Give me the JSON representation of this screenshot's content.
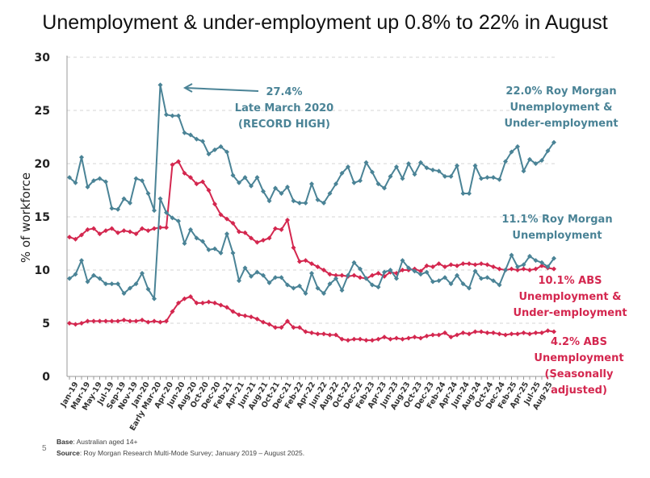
{
  "title": "Unemployment & under-employment up 0.8% to 22% in August",
  "footer": {
    "page_number": "5",
    "base_label": "Base",
    "base_text": ": Australian aged 14+",
    "source_label": "Source",
    "source_text": ": Roy Morgan Research Multi-Mode Survey; January 2019 – August 2025."
  },
  "chart_data": {
    "type": "line",
    "title": "Unemployment & under-employment up 0.8% to 22% in August",
    "xlabel": "",
    "ylabel": "% of workforce",
    "ylim": [
      0,
      30
    ],
    "yticks": [
      0,
      5,
      10,
      15,
      20,
      25,
      30
    ],
    "grid": "horizontal dashed",
    "x_tick_labels": [
      "Jan-19",
      "Mar-19",
      "May-19",
      "Jul-19",
      "Sep-19",
      "Nov-19",
      "Jan-20",
      "Early Mar-20",
      "Apr-20",
      "Jun-20",
      "Aug-20",
      "Oct-20",
      "Dec-20",
      "Feb-21",
      "Apr-21",
      "Jun-21",
      "Aug-21",
      "Oct-21",
      "Dec-21",
      "Feb-22",
      "Apr-22",
      "Jun-22",
      "Aug-22",
      "Oct-22",
      "Dec-22",
      "Feb-23",
      "Apr-23",
      "Jun-23",
      "Aug-23",
      "Oct-23",
      "Dec-23",
      "Feb-24",
      "Apr-24",
      "Jun-24",
      "Aug-24",
      "Oct-24",
      "Dec-24",
      "Feb-25",
      "Apr-25",
      "Jul-25",
      "Aug-25"
    ],
    "series": [
      {
        "name": "Roy Morgan Unemployment & Under-employment",
        "color": "#4a8396",
        "end_label": [
          "22.0% Roy Morgan",
          "Unemployment &",
          "Under-employment"
        ],
        "values": [
          18.7,
          18.2,
          20.6,
          17.8,
          18.4,
          18.6,
          18.3,
          15.8,
          15.7,
          16.7,
          16.3,
          18.6,
          18.4,
          17.2,
          15.6,
          27.4,
          24.6,
          24.5,
          24.5,
          22.9,
          22.7,
          22.3,
          22.1,
          20.9,
          21.3,
          21.6,
          21.1,
          18.9,
          18.2,
          18.7,
          17.9,
          18.7,
          17.4,
          16.5,
          17.7,
          17.2,
          17.8,
          16.5,
          16.3,
          16.3,
          18.1,
          16.6,
          16.3,
          17.2,
          18.1,
          19.1,
          19.7,
          18.2,
          18.4,
          20.1,
          19.2,
          18.1,
          17.7,
          18.8,
          19.7,
          18.6,
          20.0,
          19.0,
          20.1,
          19.6,
          19.4,
          19.3,
          18.8,
          18.8,
          19.8,
          17.2,
          17.2,
          19.8,
          18.6,
          18.7,
          18.7,
          18.5,
          20.2,
          21.1,
          21.6,
          19.3,
          20.4,
          20.0,
          20.3,
          21.2,
          22.0
        ]
      },
      {
        "name": "ABS Unemployment & Under-employment",
        "color": "#d4274f",
        "end_label": [
          "10.1% ABS",
          "Unemployment &",
          "Under-employment"
        ],
        "values": [
          13.1,
          12.9,
          13.3,
          13.8,
          13.9,
          13.4,
          13.7,
          13.9,
          13.5,
          13.7,
          13.6,
          13.4,
          13.9,
          13.7,
          13.9,
          14.0,
          14.0,
          19.9,
          20.2,
          19.1,
          18.7,
          18.1,
          18.3,
          17.5,
          16.2,
          15.2,
          14.8,
          14.4,
          13.6,
          13.5,
          13.0,
          12.6,
          12.8,
          13.0,
          13.9,
          13.8,
          14.7,
          12.1,
          10.8,
          10.9,
          10.6,
          10.3,
          10.0,
          9.6,
          9.5,
          9.5,
          9.4,
          9.5,
          9.3,
          9.2,
          9.5,
          9.7,
          9.4,
          9.8,
          9.7,
          10.0,
          10.0,
          10.1,
          9.9,
          10.4,
          10.3,
          10.6,
          10.3,
          10.5,
          10.4,
          10.6,
          10.6,
          10.5,
          10.6,
          10.5,
          10.3,
          10.1,
          10.0,
          10.1,
          10.0,
          10.1,
          10.0,
          10.1,
          10.4,
          10.2,
          10.1
        ]
      },
      {
        "name": "Roy Morgan Unemployment",
        "color": "#4a8396",
        "end_label": [
          "11.1% Roy Morgan",
          "Unemployment"
        ],
        "values": [
          9.2,
          9.6,
          10.9,
          8.9,
          9.5,
          9.2,
          8.7,
          8.7,
          8.7,
          7.8,
          8.3,
          8.7,
          9.7,
          8.2,
          7.3,
          16.7,
          15.4,
          14.9,
          14.6,
          12.5,
          13.8,
          13.0,
          12.7,
          11.9,
          12.0,
          11.6,
          13.4,
          11.6,
          9.0,
          10.2,
          9.4,
          9.8,
          9.5,
          8.8,
          9.3,
          9.3,
          8.6,
          8.3,
          8.5,
          7.8,
          9.7,
          8.3,
          7.8,
          8.7,
          9.2,
          8.1,
          9.5,
          10.7,
          10.1,
          9.2,
          8.6,
          8.4,
          9.8,
          10.0,
          9.2,
          10.9,
          10.2,
          9.9,
          9.6,
          9.8,
          8.9,
          9.0,
          9.3,
          8.7,
          9.5,
          8.7,
          8.3,
          9.9,
          9.2,
          9.3,
          9.0,
          8.6,
          10.0,
          11.4,
          10.3,
          10.5,
          11.3,
          10.9,
          10.7,
          10.3,
          11.1
        ]
      },
      {
        "name": "ABS Unemployment (Seasonally adjusted)",
        "color": "#d4274f",
        "end_label": [
          "4.2% ABS",
          "Unemployment",
          "(Seasonally",
          "adjusted)"
        ],
        "values": [
          5.0,
          4.9,
          5.0,
          5.2,
          5.2,
          5.2,
          5.2,
          5.2,
          5.2,
          5.3,
          5.2,
          5.2,
          5.3,
          5.1,
          5.2,
          5.1,
          5.2,
          6.1,
          6.9,
          7.3,
          7.5,
          6.9,
          6.9,
          7.0,
          6.9,
          6.7,
          6.5,
          6.1,
          5.8,
          5.7,
          5.6,
          5.4,
          5.1,
          4.9,
          4.6,
          4.6,
          5.2,
          4.6,
          4.6,
          4.2,
          4.1,
          4.0,
          4.0,
          3.9,
          3.9,
          3.5,
          3.4,
          3.5,
          3.5,
          3.4,
          3.4,
          3.5,
          3.7,
          3.5,
          3.6,
          3.5,
          3.6,
          3.7,
          3.6,
          3.8,
          3.9,
          3.9,
          4.1,
          3.7,
          3.9,
          4.1,
          4.0,
          4.2,
          4.2,
          4.1,
          4.1,
          4.0,
          3.9,
          4.0,
          4.0,
          4.1,
          4.0,
          4.1,
          4.1,
          4.3,
          4.2
        ]
      }
    ],
    "annotations": [
      {
        "text": [
          "27.4%",
          "Late March 2020",
          "(RECORD HIGH)"
        ],
        "points_to": "Roy Morgan Unemployment & Under-employment peak 27.4",
        "color": "#4a8396"
      }
    ],
    "legend": "inline labels at right"
  }
}
